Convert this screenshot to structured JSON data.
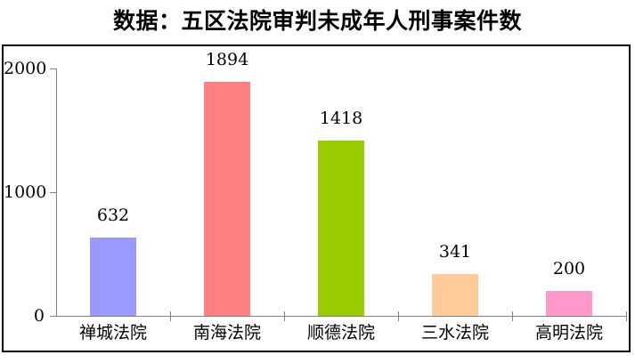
{
  "chart_data": {
    "type": "bar",
    "title": "数据：五区法院审判未成年人刑事案件数",
    "categories": [
      "禅城法院",
      "南海法院",
      "顺德法院",
      "三水法院",
      "高明法院"
    ],
    "values": [
      632,
      1894,
      1418,
      341,
      200
    ],
    "value_labels": [
      "632",
      "1894",
      "1418",
      "341",
      "200"
    ],
    "ytick_labels": [
      "0",
      "1000",
      "2000"
    ],
    "yticks": [
      0,
      1000,
      2000
    ],
    "ylim": [
      0,
      2000
    ],
    "xlabel": "",
    "ylabel": "",
    "grid": false,
    "legend": false,
    "bar_colors": [
      "#9999ff",
      "#ff8080",
      "#99cc00",
      "#ffcc99",
      "#ff99cc"
    ],
    "axis_color": "#808080",
    "border_color": "#000000",
    "background_color": "#ffffff",
    "text_color": "#000000"
  }
}
